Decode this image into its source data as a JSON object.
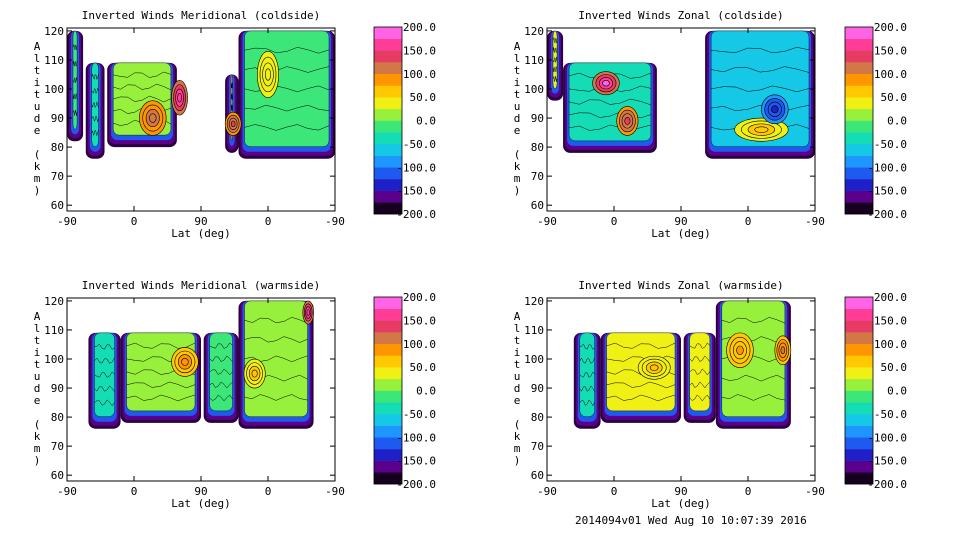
{
  "chart_data": [
    {
      "type": "heatmap",
      "title": "Inverted Winds Meridional (coldside)",
      "xlabel": "Lat (deg)",
      "ylabel": "Altitude (km)",
      "x_ticks": [
        "-90",
        "0",
        "90",
        "0",
        "-90"
      ],
      "y_ticks": [
        60,
        70,
        80,
        90,
        100,
        110,
        120
      ],
      "ylim": [
        58,
        121
      ],
      "colorbar": {
        "min": -200,
        "max": 200,
        "tick_labels": [
          "200.0",
          "150.0",
          "100.0",
          "50.0",
          "0.0",
          "-50.0",
          "-100.0",
          "-150.0",
          "-200.0"
        ]
      },
      "bands": [
        {
          "from": 0.0,
          "to": 0.06,
          "top": 120,
          "bottom": 82,
          "value": -20
        },
        {
          "from": 0.07,
          "to": 0.14,
          "top": 109,
          "bottom": 76,
          "value": -40
        },
        {
          "from": 0.15,
          "to": 0.41,
          "top": 109,
          "bottom": 80,
          "value": 20
        },
        {
          "from": 0.59,
          "to": 0.64,
          "top": 105,
          "bottom": 78,
          "value": 60
        },
        {
          "from": 0.64,
          "to": 1.0,
          "top": 120,
          "bottom": 76,
          "value": -20
        }
      ],
      "blobs": [
        {
          "x": 0.32,
          "y": 90,
          "rx": 0.05,
          "ry": 6,
          "value": 120
        },
        {
          "x": 0.42,
          "y": 97,
          "rx": 0.03,
          "ry": 6,
          "value": 170
        },
        {
          "x": 0.62,
          "y": 88,
          "rx": 0.03,
          "ry": 4,
          "value": 140
        },
        {
          "x": 0.75,
          "y": 105,
          "rx": 0.04,
          "ry": 8,
          "value": 40
        }
      ]
    },
    {
      "type": "heatmap",
      "title": "Inverted Winds Zonal (coldside)",
      "xlabel": "Lat (deg)",
      "ylabel": "Altitude (km)",
      "x_ticks": [
        "-90",
        "0",
        "90",
        "0",
        "-90"
      ],
      "y_ticks": [
        60,
        70,
        80,
        90,
        100,
        110,
        120
      ],
      "ylim": [
        58,
        121
      ],
      "colorbar": {
        "min": -200,
        "max": 200,
        "tick_labels": [
          "200.0",
          "150.0",
          "100.0",
          "50.0",
          "0.0",
          "-50.0",
          "-100.0",
          "-150.0",
          "-200.0"
        ]
      },
      "bands": [
        {
          "from": 0.0,
          "to": 0.06,
          "top": 120,
          "bottom": 96,
          "value": 30
        },
        {
          "from": 0.06,
          "to": 0.41,
          "top": 109,
          "bottom": 78,
          "value": -40
        },
        {
          "from": 0.59,
          "to": 1.0,
          "top": 120,
          "bottom": 76,
          "value": -60
        }
      ],
      "blobs": [
        {
          "x": 0.22,
          "y": 102,
          "rx": 0.05,
          "ry": 4,
          "value": 180
        },
        {
          "x": 0.3,
          "y": 89,
          "rx": 0.04,
          "ry": 5,
          "value": 140
        },
        {
          "x": 0.8,
          "y": 86,
          "rx": 0.1,
          "ry": 4,
          "value": 60
        },
        {
          "x": 0.85,
          "y": 93,
          "rx": 0.05,
          "ry": 5,
          "value": -130
        }
      ]
    },
    {
      "type": "heatmap",
      "title": "Inverted Winds Meridional (warmside)",
      "xlabel": "Lat (deg)",
      "ylabel": "Altitude (km)",
      "x_ticks": [
        "-90",
        "0",
        "90",
        "0",
        "-90"
      ],
      "y_ticks": [
        60,
        70,
        80,
        90,
        100,
        110,
        120
      ],
      "ylim": [
        58,
        121
      ],
      "colorbar": {
        "min": -200,
        "max": 200,
        "tick_labels": [
          "200.0",
          "150.0",
          "100.0",
          "50.0",
          "0.0",
          "-50.0",
          "-100.0",
          "-150.0",
          "-200.0"
        ]
      },
      "bands": [
        {
          "from": 0.08,
          "to": 0.2,
          "top": 109,
          "bottom": 76,
          "value": -40
        },
        {
          "from": 0.2,
          "to": 0.5,
          "top": 109,
          "bottom": 78,
          "value": 20
        },
        {
          "from": 0.51,
          "to": 0.64,
          "top": 109,
          "bottom": 78,
          "value": -10
        },
        {
          "from": 0.64,
          "to": 0.92,
          "top": 120,
          "bottom": 76,
          "value": 0
        }
      ],
      "blobs": [
        {
          "x": 0.44,
          "y": 99,
          "rx": 0.05,
          "ry": 5,
          "value": 90
        },
        {
          "x": 0.7,
          "y": 95,
          "rx": 0.04,
          "ry": 5,
          "value": 60
        },
        {
          "x": 0.9,
          "y": 116,
          "rx": 0.02,
          "ry": 4,
          "value": 170
        }
      ]
    },
    {
      "type": "heatmap",
      "title": "Inverted Winds Zonal (warmside)",
      "xlabel": "Lat (deg)",
      "ylabel": "Altitude (km)",
      "x_ticks": [
        "-90",
        "0",
        "90",
        "0",
        "-90"
      ],
      "y_ticks": [
        60,
        70,
        80,
        90,
        100,
        110,
        120
      ],
      "ylim": [
        58,
        121
      ],
      "colorbar": {
        "min": -200,
        "max": 200,
        "tick_labels": [
          "200.0",
          "150.0",
          "100.0",
          "50.0",
          "0.0",
          "-50.0",
          "-100.0",
          "-150.0",
          "-200.0"
        ]
      },
      "bands": [
        {
          "from": 0.1,
          "to": 0.2,
          "top": 109,
          "bottom": 76,
          "value": -30
        },
        {
          "from": 0.2,
          "to": 0.5,
          "top": 109,
          "bottom": 78,
          "value": 30
        },
        {
          "from": 0.51,
          "to": 0.63,
          "top": 109,
          "bottom": 78,
          "value": 30
        },
        {
          "from": 0.63,
          "to": 0.91,
          "top": 120,
          "bottom": 76,
          "value": 20
        }
      ],
      "blobs": [
        {
          "x": 0.4,
          "y": 97,
          "rx": 0.06,
          "ry": 4,
          "value": 60
        },
        {
          "x": 0.72,
          "y": 103,
          "rx": 0.05,
          "ry": 6,
          "value": 80
        },
        {
          "x": 0.88,
          "y": 103,
          "rx": 0.03,
          "ry": 5,
          "value": 100
        }
      ]
    }
  ],
  "footer": "2014094v01 Wed Aug 10 10:07:39 2016"
}
